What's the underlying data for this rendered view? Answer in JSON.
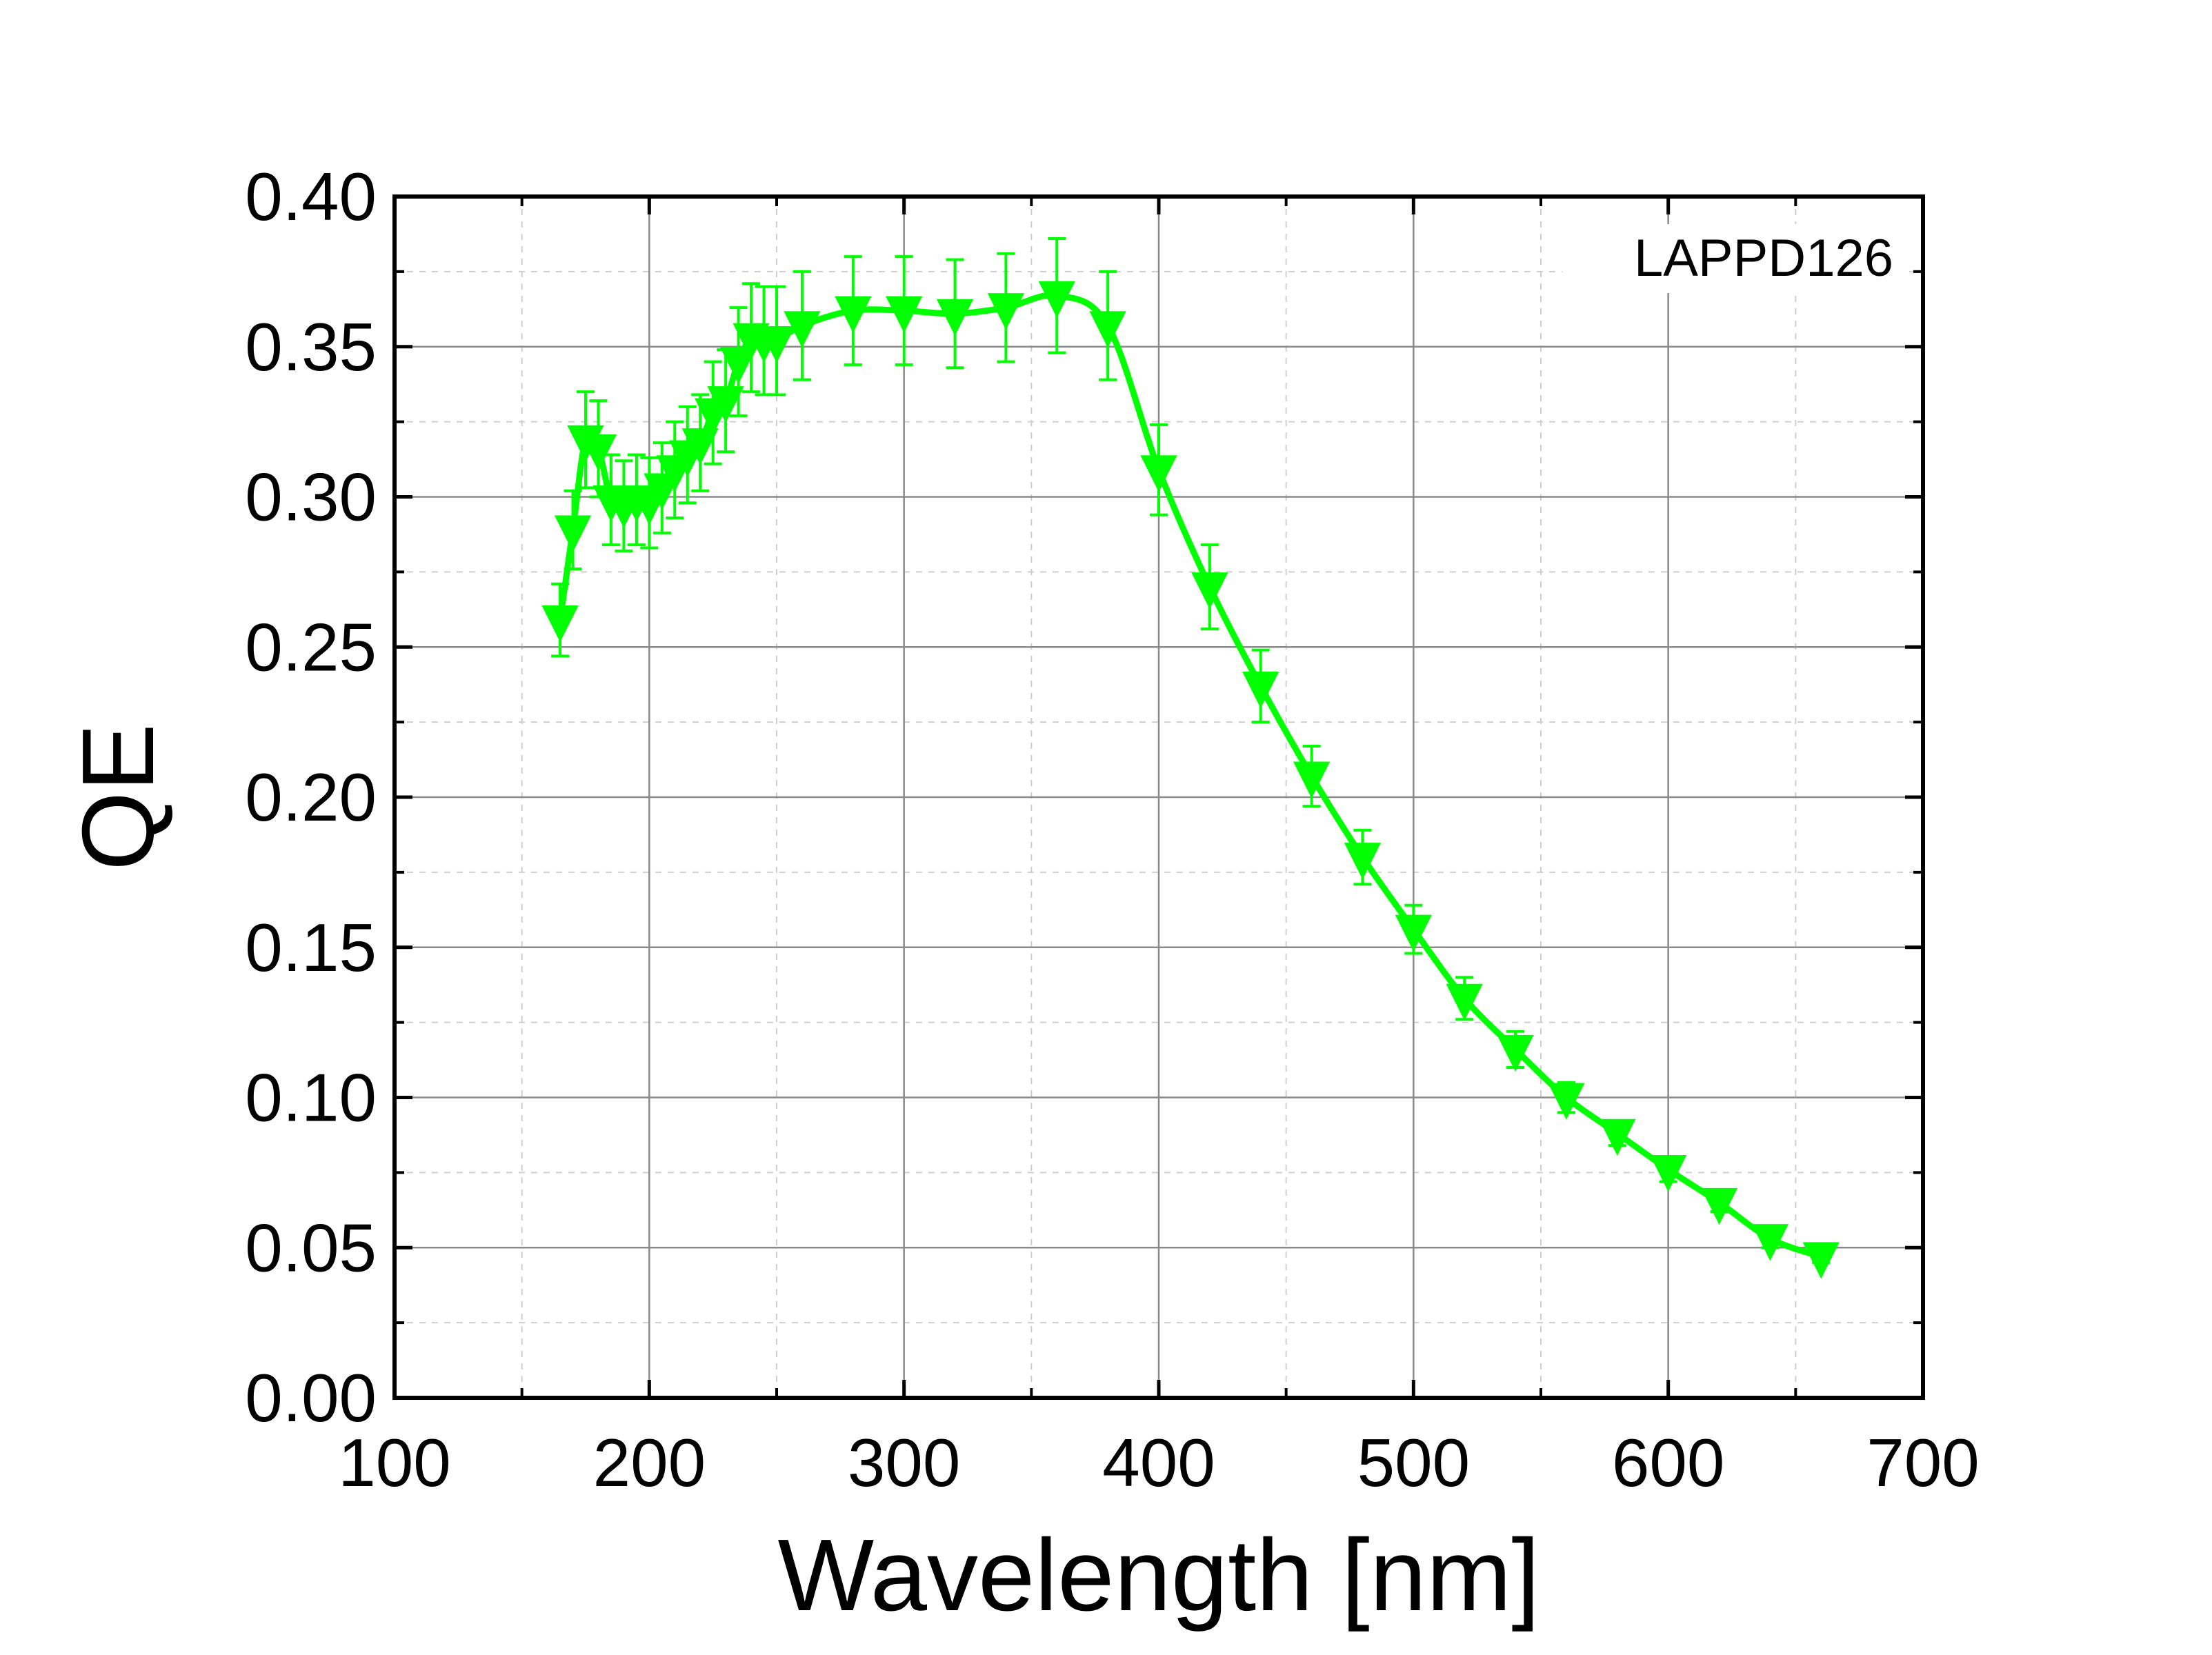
{
  "chart_data": {
    "type": "line",
    "title": "",
    "xlabel": "Wavelength [nm]",
    "ylabel": "QE",
    "xlim": [
      100,
      700
    ],
    "ylim": [
      0.0,
      0.4
    ],
    "xticks": [
      100,
      200,
      300,
      400,
      500,
      600,
      700
    ],
    "xtick_labels": [
      "100",
      "200",
      "300",
      "400",
      "500",
      "600",
      "700"
    ],
    "yticks": [
      0.0,
      0.05,
      0.1,
      0.15,
      0.2,
      0.25,
      0.3,
      0.35,
      0.4
    ],
    "ytick_labels": [
      "0.00",
      "0.05",
      "0.10",
      "0.15",
      "0.20",
      "0.25",
      "0.30",
      "0.35",
      "0.40"
    ],
    "grid": true,
    "annotation": "LAPPD126",
    "series_color": "#00ff00",
    "marker": "down-triangle",
    "series": [
      {
        "name": "LAPPD126",
        "x": [
          165,
          170,
          175,
          180,
          185,
          190,
          195,
          200,
          205,
          210,
          215,
          220,
          225,
          230,
          235,
          240,
          245,
          250,
          260,
          280,
          300,
          320,
          340,
          360,
          380,
          400,
          420,
          440,
          460,
          480,
          500,
          520,
          540,
          560,
          580,
          600,
          620,
          640,
          660
        ],
        "y": [
          0.259,
          0.289,
          0.319,
          0.316,
          0.299,
          0.297,
          0.299,
          0.298,
          0.303,
          0.309,
          0.314,
          0.318,
          0.328,
          0.332,
          0.345,
          0.353,
          0.352,
          0.352,
          0.357,
          0.362,
          0.362,
          0.361,
          0.363,
          0.367,
          0.357,
          0.309,
          0.27,
          0.237,
          0.207,
          0.18,
          0.156,
          0.133,
          0.116,
          0.1,
          0.088,
          0.076,
          0.065,
          0.053,
          0.047
        ],
        "err": [
          0.012,
          0.013,
          0.016,
          0.016,
          0.015,
          0.015,
          0.015,
          0.015,
          0.015,
          0.016,
          0.016,
          0.016,
          0.017,
          0.017,
          0.018,
          0.018,
          0.018,
          0.018,
          0.018,
          0.018,
          0.018,
          0.018,
          0.018,
          0.019,
          0.018,
          0.015,
          0.014,
          0.012,
          0.01,
          0.009,
          0.008,
          0.007,
          0.006,
          0.005,
          0.004,
          0.004,
          0.003,
          0.003,
          0.002
        ]
      }
    ]
  }
}
